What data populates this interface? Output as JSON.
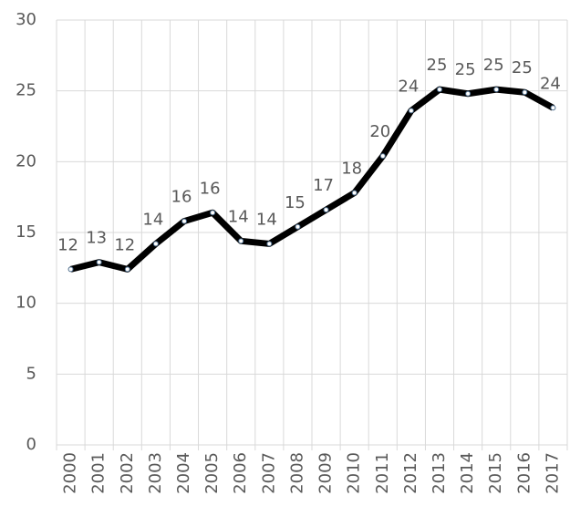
{
  "chart_data": {
    "type": "line",
    "categories": [
      "2000",
      "2001",
      "2002",
      "2003",
      "2004",
      "2005",
      "2006",
      "2007",
      "2008",
      "2009",
      "2010",
      "2011",
      "2012",
      "2013",
      "2014",
      "2015",
      "2016",
      "2017"
    ],
    "series": [
      {
        "color": "#000000",
        "values": [
          12.4,
          12.9,
          12.4,
          14.2,
          15.8,
          16.4,
          14.4,
          14.2,
          15.4,
          16.6,
          17.8,
          20.4,
          23.6,
          25.1,
          24.8,
          25.1,
          24.9,
          23.8
        ],
        "value_labels": [
          "12",
          "13",
          "12",
          "14",
          "16",
          "16",
          "14",
          "14",
          "15",
          "17",
          "18",
          "20",
          "24",
          "25",
          "25",
          "25",
          "25",
          "24"
        ]
      }
    ],
    "ylim": [
      0,
      30
    ],
    "yticks": [
      0,
      5,
      10,
      15,
      20,
      25,
      30
    ],
    "grid": true
  }
}
